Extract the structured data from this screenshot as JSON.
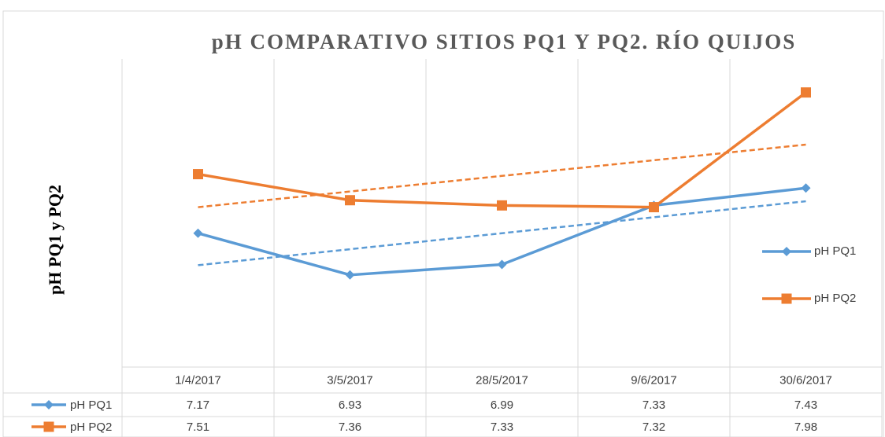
{
  "chart_data": {
    "type": "line",
    "title": "pH COMPARATIVO SITIOS PQ1 Y PQ2. RÍO QUIJOS",
    "y_label": "pH PQ1 y PQ2",
    "categories": [
      "1/4/2017",
      "3/5/2017",
      "28/5/2017",
      "9/6/2017",
      "30/6/2017"
    ],
    "series": [
      {
        "name": "pH PQ1",
        "color": "#5b9bd5",
        "marker": "diamond",
        "values": [
          7.17,
          6.93,
          6.99,
          7.33,
          7.43
        ]
      },
      {
        "name": "pH PQ2",
        "color": "#ed7d31",
        "marker": "square",
        "values": [
          7.51,
          7.36,
          7.33,
          7.32,
          7.98
        ]
      }
    ],
    "ylim": [
      6.4,
      8.2
    ],
    "trendline": true,
    "legend": "right",
    "data_table": true
  }
}
